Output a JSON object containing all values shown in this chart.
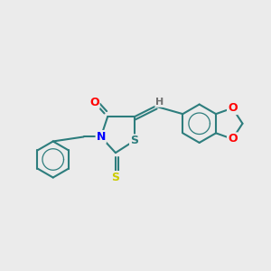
{
  "bg_color": "#ebebeb",
  "bond_color": "#2d7d7d",
  "bond_width": 1.5,
  "atom_colors": {
    "O": "#ff0000",
    "N": "#0000ff",
    "S_yellow": "#cccc00",
    "S_teal": "#2d7d7d",
    "H": "#707070"
  },
  "fig_size": [
    3.0,
    3.0
  ],
  "dpi": 100
}
